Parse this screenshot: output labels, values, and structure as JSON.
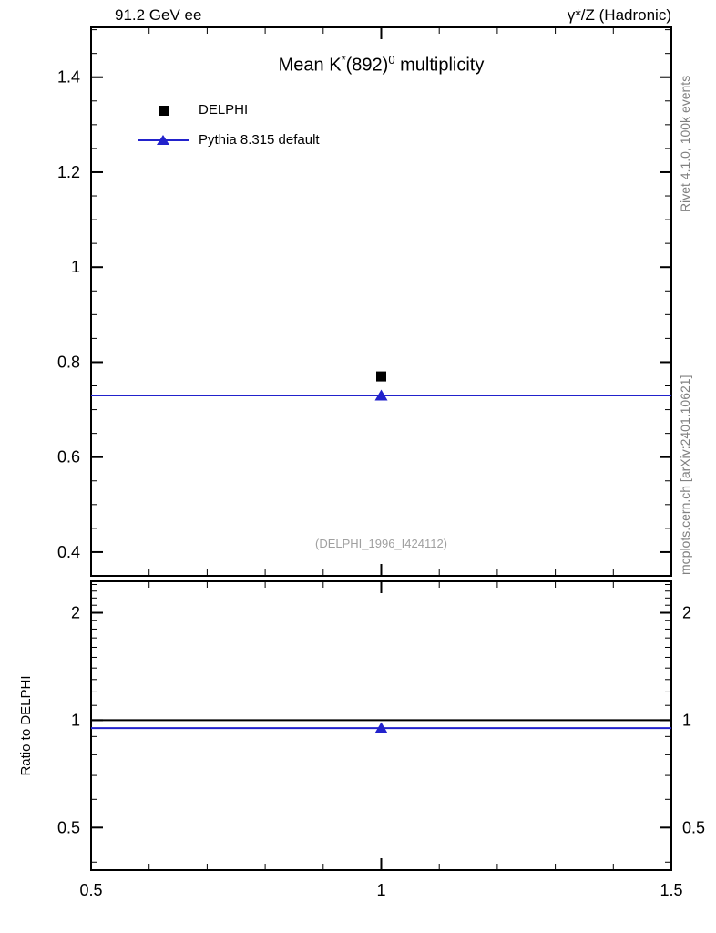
{
  "chart_data": {
    "type": "scatter",
    "title": "Mean K*(892)0 multiplicity",
    "title_parts": {
      "pre": "Mean K",
      "sup_star": "*",
      "mid": "(892)",
      "sup_zero": "0",
      "post": " multiplicity"
    },
    "annotations": {
      "header_left": "91.2 GeV ee",
      "header_right": "γ*/Z (Hadronic)",
      "watermark": "(DELPHI_1996_I424112)",
      "rivet_note": "Rivet 4.1.0, 100k events",
      "mcplots_note": "mcplots.cern.ch [arXiv:2401.10621]"
    },
    "colors": {
      "data": "#000000",
      "pythia": "#2222cc",
      "watermark": "#a0a0a0",
      "side_note": "#808080"
    },
    "legend": {
      "position": "top-left",
      "entries": [
        {
          "label": "DELPHI",
          "marker": "square",
          "color": "#000000"
        },
        {
          "label": "Pythia 8.315 default",
          "marker": "line-triangle",
          "color": "#2222cc"
        }
      ]
    },
    "x_axis": {
      "lim": [
        0.5,
        1.5
      ],
      "ticks": [
        0.5,
        1,
        1.5
      ],
      "tick_labels": [
        "0.5",
        "1",
        "1.5"
      ],
      "minor_step": 0.1
    },
    "main_panel": {
      "y_axis": {
        "scale": "linear",
        "lim": [
          0.35,
          1.505
        ],
        "ticks": [
          0.4,
          0.6,
          0.8,
          1,
          1.2,
          1.4
        ],
        "tick_labels": [
          "0.4",
          "0.6",
          "0.8",
          "1",
          "1.2",
          "1.4"
        ],
        "minor_step": 0.05
      },
      "series": [
        {
          "name": "DELPHI",
          "marker": "square",
          "color": "#000000",
          "points": [
            {
              "x": 1,
              "y": 0.77
            }
          ]
        },
        {
          "name": "Pythia 8.315 default",
          "marker": "triangle",
          "color": "#2222cc",
          "line": {
            "y": 0.73,
            "x_span": [
              0.5,
              1.5
            ]
          },
          "points": [
            {
              "x": 1,
              "y": 0.73
            }
          ]
        }
      ]
    },
    "ratio_panel": {
      "ylabel": "Ratio to DELPHI",
      "y_axis": {
        "scale": "log",
        "lim": [
          0.38,
          2.45
        ],
        "ticks": [
          0.5,
          1,
          2
        ],
        "tick_labels": [
          "0.5",
          "1",
          "2"
        ],
        "labels_both_sides": true
      },
      "series": [
        {
          "name": "reference",
          "marker": null,
          "color": "#000000",
          "line": {
            "y": 1.0,
            "x_span": [
              0.5,
              1.5
            ]
          }
        },
        {
          "name": "Pythia ratio",
          "marker": "triangle",
          "color": "#2222cc",
          "line": {
            "y": 0.95,
            "x_span": [
              0.5,
              1.5
            ]
          },
          "points": [
            {
              "x": 1,
              "y": 0.95
            }
          ]
        }
      ]
    }
  }
}
